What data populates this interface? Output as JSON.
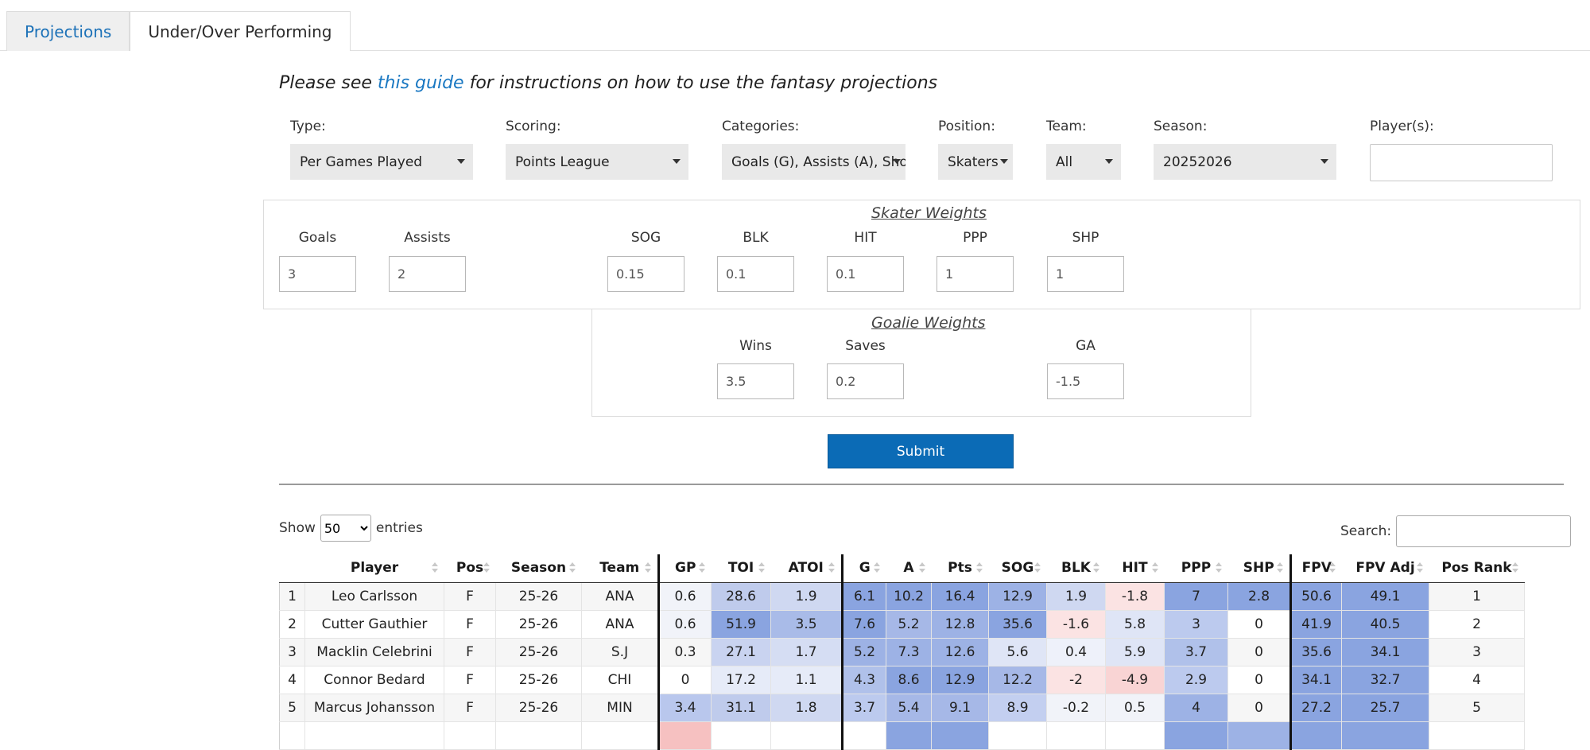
{
  "tabs": [
    {
      "label": "Projections",
      "active": true
    },
    {
      "label": "Under/Over Performing",
      "active": false
    }
  ],
  "guide": {
    "prefix": "Please see ",
    "link": "this guide",
    "suffix": " for instructions on how to use the fantasy projections"
  },
  "filters": {
    "type": {
      "label": "Type:",
      "value": "Per Games Played"
    },
    "scoring": {
      "label": "Scoring:",
      "value": "Points League"
    },
    "categories": {
      "label": "Categories:",
      "value": "Goals (G), Assists (A), Sho"
    },
    "position": {
      "label": "Position:",
      "value": "Skaters"
    },
    "team": {
      "label": "Team:",
      "value": "All"
    },
    "season": {
      "label": "Season:",
      "value": "20252026"
    },
    "players": {
      "label": "Player(s):",
      "value": ""
    }
  },
  "skater_weights": {
    "title": "Skater Weights",
    "goals": {
      "label": "Goals",
      "value": "3"
    },
    "assists": {
      "label": "Assists",
      "value": "2"
    },
    "sog": {
      "label": "SOG",
      "value": "0.15"
    },
    "blk": {
      "label": "BLK",
      "value": "0.1"
    },
    "hit": {
      "label": "HIT",
      "value": "0.1"
    },
    "ppp": {
      "label": "PPP",
      "value": "1"
    },
    "shp": {
      "label": "SHP",
      "value": "1"
    }
  },
  "goalie_weights": {
    "title": "Goalie Weights",
    "wins": {
      "label": "Wins",
      "value": "3.5"
    },
    "saves": {
      "label": "Saves",
      "value": "0.2"
    },
    "ga": {
      "label": "GA",
      "value": "-1.5"
    }
  },
  "submit_label": "Submit",
  "table_controls": {
    "show_label": "Show",
    "entries_value": "50",
    "entries_label": "entries",
    "search_label": "Search:"
  },
  "table": {
    "columns": [
      "",
      "Player",
      "Pos",
      "Season",
      "Team",
      "GP",
      "TOI",
      "ATOI",
      "G",
      "A",
      "Pts",
      "SOG",
      "BLK",
      "HIT",
      "PPP",
      "SHP",
      "FPV",
      "FPV Adj",
      "Pos Rank"
    ],
    "rows": [
      {
        "cells": [
          "1",
          "Leo Carlsson",
          "F",
          "25-26",
          "ANA",
          "0.6",
          "28.6",
          "1.9",
          "6.1",
          "10.2",
          "16.4",
          "12.9",
          "1.9",
          "-1.8",
          "7",
          "2.8",
          "50.6",
          "49.1",
          "1"
        ],
        "colors": [
          "#f6f6f6",
          "#f6f6f6",
          "#f6f6f6",
          "#f6f6f6",
          "#f6f6f6",
          "#f1f3f9",
          "#bfcbec",
          "#cfd8f1",
          "#8aa4e0",
          "#8aa4e0",
          "#8aa4e0",
          "#9db2e5",
          "#cfd8f1",
          "#fbe3e3",
          "#8aa4e0",
          "#8aa4e0",
          "#8aa4e0",
          "#8aa4e0",
          "#f6f6f6"
        ]
      },
      {
        "cells": [
          "2",
          "Cutter Gauthier",
          "F",
          "25-26",
          "ANA",
          "0.6",
          "51.9",
          "3.5",
          "7.6",
          "5.2",
          "12.8",
          "35.6",
          "-1.6",
          "5.8",
          "3",
          "0",
          "41.9",
          "40.5",
          "2"
        ],
        "colors": [
          "#ffffff",
          "#ffffff",
          "#ffffff",
          "#ffffff",
          "#ffffff",
          "#f1f3f9",
          "#8aa4e0",
          "#a9bbe8",
          "#8aa4e0",
          "#a6b8e7",
          "#9db2e5",
          "#8aa4e0",
          "#fbe3e3",
          "#dfe5f6",
          "#bccaee",
          "#ffffff",
          "#8aa4e0",
          "#8aa4e0",
          "#ffffff"
        ]
      },
      {
        "cells": [
          "3",
          "Macklin Celebrini",
          "F",
          "25-26",
          "S.J",
          "0.3",
          "27.1",
          "1.7",
          "5.2",
          "7.3",
          "12.6",
          "5.6",
          "0.4",
          "5.9",
          "3.7",
          "0",
          "35.6",
          "34.1",
          "3"
        ],
        "colors": [
          "#f6f6f6",
          "#f6f6f6",
          "#f6f6f6",
          "#f6f6f6",
          "#f6f6f6",
          "#f6f6f6",
          "#c9d3f0",
          "#d5ddf3",
          "#9db2e5",
          "#9db2e5",
          "#9db2e5",
          "#dfe5f6",
          "#eef1fa",
          "#dfe5f6",
          "#b0c1ea",
          "#f6f6f6",
          "#8aa4e0",
          "#8aa4e0",
          "#f6f6f6"
        ]
      },
      {
        "cells": [
          "4",
          "Connor Bedard",
          "F",
          "25-26",
          "CHI",
          "0",
          "17.2",
          "1.1",
          "4.3",
          "8.6",
          "12.9",
          "12.2",
          "-2",
          "-4.9",
          "2.9",
          "0",
          "34.1",
          "32.7",
          "4"
        ],
        "colors": [
          "#ffffff",
          "#ffffff",
          "#ffffff",
          "#ffffff",
          "#ffffff",
          "#ffffff",
          "#e6ebf8",
          "#e6ebf8",
          "#b0c1ea",
          "#8aa4e0",
          "#8aa4e0",
          "#a6b8e7",
          "#fbe3e3",
          "#f9d4d4",
          "#bccaee",
          "#ffffff",
          "#8aa4e0",
          "#8aa4e0",
          "#ffffff"
        ]
      },
      {
        "cells": [
          "5",
          "Marcus Johansson",
          "F",
          "25-26",
          "MIN",
          "3.4",
          "31.1",
          "1.8",
          "3.7",
          "5.4",
          "9.1",
          "8.9",
          "-0.2",
          "0.5",
          "4",
          "0",
          "27.2",
          "25.7",
          "5"
        ],
        "colors": [
          "#f6f6f6",
          "#f6f6f6",
          "#f6f6f6",
          "#f6f6f6",
          "#f6f6f6",
          "#b9c7ed",
          "#bfcbec",
          "#cfd8f1",
          "#bccaee",
          "#a6b8e7",
          "#a6b8e7",
          "#c3cff0",
          "#f1f3f9",
          "#f1f3f9",
          "#9db2e5",
          "#f6f6f6",
          "#8aa4e0",
          "#8aa4e0",
          "#f6f6f6"
        ]
      },
      {
        "cells": [
          "",
          "",
          "",
          "",
          "",
          "",
          "",
          "",
          "",
          "",
          "",
          "",
          "",
          "",
          "",
          "",
          "",
          "",
          ""
        ],
        "colors": [
          "#ffffff",
          "#ffffff",
          "#ffffff",
          "#ffffff",
          "#ffffff",
          "#f6c1c1",
          "#ffffff",
          "#ffffff",
          "#ffffff",
          "#8aa4e0",
          "#8aa4e0",
          "#ffffff",
          "#ffffff",
          "#ffffff",
          "#8aa4e0",
          "#9db2e5",
          "#8aa4e0",
          "#8aa4e0",
          "#ffffff"
        ]
      }
    ]
  }
}
